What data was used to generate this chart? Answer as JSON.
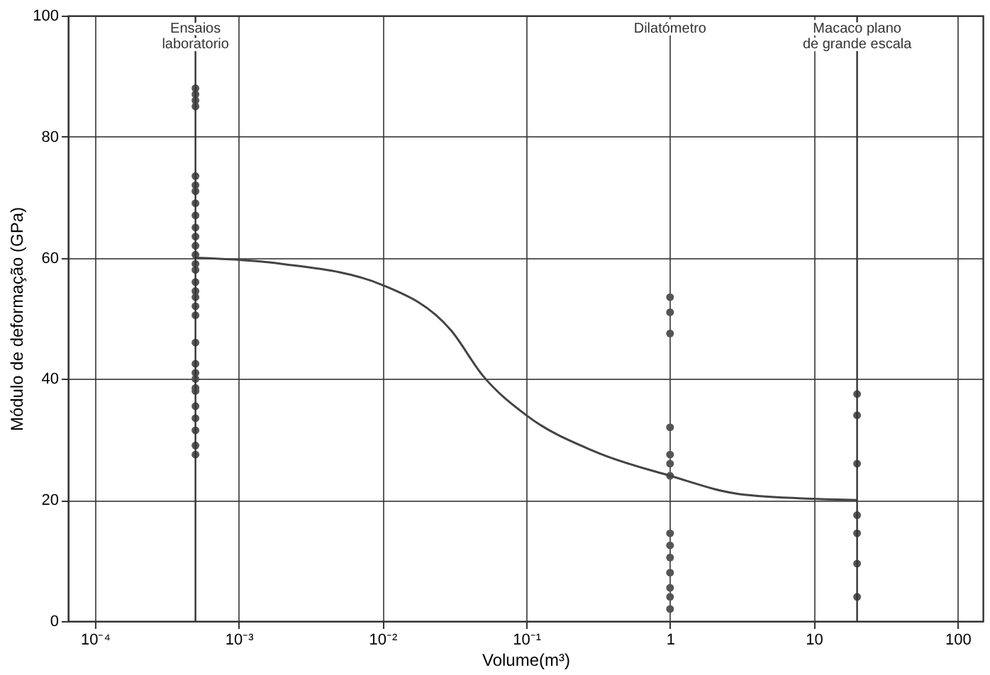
{
  "chart_data": {
    "type": "scatter",
    "xlabel": "Volume(m³)",
    "ylabel": "Módulo de deformação (GPa)",
    "xlim": [
      6.5e-05,
      150
    ],
    "ylim": [
      0,
      100
    ],
    "log": "x",
    "xticks": [
      {
        "value": 0.0001,
        "label": "10⁻⁴"
      },
      {
        "value": 0.001,
        "label": "10⁻³"
      },
      {
        "value": 0.01,
        "label": "10⁻²"
      },
      {
        "value": 0.1,
        "label": "10⁻¹"
      },
      1,
      10,
      100
    ],
    "yticks": [
      0,
      20,
      40,
      60,
      80,
      100
    ],
    "grid": true,
    "marker": "circle",
    "series": [
      {
        "color": "#555555",
        "x": [
          0.0005,
          0.0005,
          0.0005,
          0.0005,
          0.0005,
          0.0005,
          0.0005,
          0.0005,
          0.0005,
          0.0005,
          0.0005,
          0.0005,
          0.0005,
          0.0005,
          0.0005,
          0.0005,
          0.0005,
          0.0005,
          0.0005,
          0.0005,
          0.0005,
          0.0005,
          0.0005,
          0.0005,
          0.0005,
          0.0005,
          0.0005,
          0.0005,
          0.0005,
          0.0005,
          0.0005
        ],
        "values": [
          88,
          87,
          86,
          85,
          73.5,
          72,
          71,
          69,
          67,
          65,
          63.5,
          62,
          60.5,
          59,
          58,
          56,
          54.5,
          53.5,
          52,
          50.5,
          46,
          42.5,
          41,
          40,
          38.5,
          38,
          35.5,
          33.5,
          31.5,
          29,
          27.5
        ]
      },
      {
        "color": "#555555",
        "x": [
          1,
          1,
          1,
          1,
          1,
          1,
          1,
          1,
          1,
          1,
          1,
          1,
          1,
          1
        ],
        "values": [
          53.5,
          51,
          47.5,
          32,
          27.5,
          26,
          24,
          14.5,
          12.5,
          10.5,
          8,
          5.5,
          4,
          2
        ]
      },
      {
        "color": "#555555",
        "x": [
          20,
          20,
          20,
          20,
          20,
          20,
          20
        ],
        "values": [
          37.5,
          34,
          26,
          17.5,
          14.5,
          9.5,
          4
        ]
      },
      {
        "type": "line",
        "color": "#444444",
        "marker": "none",
        "line_style": "solid",
        "x": [
          0.0005,
          0.002,
          0.01,
          0.03,
          0.05,
          0.1,
          0.3,
          1,
          3,
          10,
          20
        ],
        "values": [
          60,
          59,
          55.5,
          48,
          40.5,
          34,
          28,
          24,
          21,
          20.2,
          20
        ]
      }
    ],
    "ref_lines": [
      {
        "axis": "x",
        "value": 0.0005
      },
      {
        "axis": "x",
        "value": 20
      }
    ],
    "annotations": [
      "Ensaios\nlaboratorio",
      "Dilatómetro",
      "Macaco plano\nde grande escala"
    ]
  }
}
